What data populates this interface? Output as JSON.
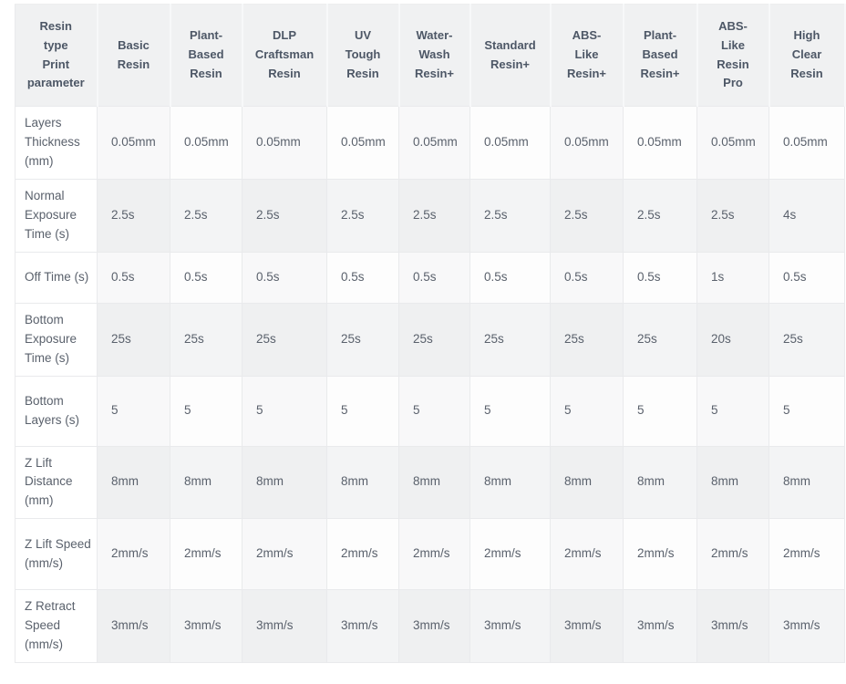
{
  "colors": {
    "header_bg": "#f0f1f2",
    "header_text": "#4d5766",
    "body_text": "#5a616c",
    "row_light": "#fdfdfd",
    "row_light_tint": "#f8f8f9",
    "row_gray": "#f3f4f5",
    "row_gray_tint": "#eff0f1",
    "label_bg": "#ffffff",
    "border": "#e9eaec",
    "page_bg": "#ffffff"
  },
  "table": {
    "corner": {
      "label": "Resin type Print parameter",
      "lines": "Resin\ntype\nPrint\nparameter"
    },
    "columns": [
      {
        "label": "Basic Resin",
        "lines": "Basic\nResin"
      },
      {
        "label": "Plant-Based Resin",
        "lines": "Plant-\nBased\nResin"
      },
      {
        "label": "DLP Craftsman Resin",
        "lines": "DLP\nCraftsman\nResin"
      },
      {
        "label": "UV Tough Resin",
        "lines": "UV\nTough\nResin"
      },
      {
        "label": "Water-Wash Resin+",
        "lines": "Water-\nWash\nResin+"
      },
      {
        "label": "Standard Resin+",
        "lines": "Standard\nResin+"
      },
      {
        "label": "ABS-Like Resin+",
        "lines": "ABS-\nLike\nResin+"
      },
      {
        "label": "Plant-Based Resin+",
        "lines": "Plant-\nBased\nResin+"
      },
      {
        "label": "ABS-Like Resin Pro",
        "lines": "ABS-\nLike\nResin\nPro"
      },
      {
        "label": "High Clear Resin",
        "lines": "High\nClear\nResin"
      }
    ],
    "rows": [
      {
        "label": "Layers Thickness (mm)",
        "values": [
          "0.05mm",
          "0.05mm",
          "0.05mm",
          "0.05mm",
          "0.05mm",
          "0.05mm",
          "0.05mm",
          "0.05mm",
          "0.05mm",
          "0.05mm"
        ]
      },
      {
        "label": "Normal Exposure Time (s)",
        "values": [
          "2.5s",
          "2.5s",
          "2.5s",
          "2.5s",
          "2.5s",
          "2.5s",
          "2.5s",
          "2.5s",
          "2.5s",
          "4s"
        ]
      },
      {
        "label": "Off Time (s)",
        "values": [
          "0.5s",
          "0.5s",
          "0.5s",
          "0.5s",
          "0.5s",
          "0.5s",
          "0.5s",
          "0.5s",
          "1s",
          "0.5s"
        ]
      },
      {
        "label": "Bottom Exposure Time (s)",
        "values": [
          "25s",
          "25s",
          "25s",
          "25s",
          "25s",
          "25s",
          "25s",
          "25s",
          "20s",
          "25s"
        ]
      },
      {
        "label": "Bottom Layers (s)",
        "values": [
          "5",
          "5",
          "5",
          "5",
          "5",
          "5",
          "5",
          "5",
          "5",
          "5"
        ]
      },
      {
        "label": "Z Lift Distance (mm)",
        "values": [
          "8mm",
          "8mm",
          "8mm",
          "8mm",
          "8mm",
          "8mm",
          "8mm",
          "8mm",
          "8mm",
          "8mm"
        ]
      },
      {
        "label": "Z Lift Speed (mm/s)",
        "values": [
          "2mm/s",
          "2mm/s",
          "2mm/s",
          "2mm/s",
          "2mm/s",
          "2mm/s",
          "2mm/s",
          "2mm/s",
          "2mm/s",
          "2mm/s"
        ]
      },
      {
        "label": "Z Retract Speed (mm/s)",
        "values": [
          "3mm/s",
          "3mm/s",
          "3mm/s",
          "3mm/s",
          "3mm/s",
          "3mm/s",
          "3mm/s",
          "3mm/s",
          "3mm/s",
          "3mm/s"
        ]
      }
    ]
  }
}
